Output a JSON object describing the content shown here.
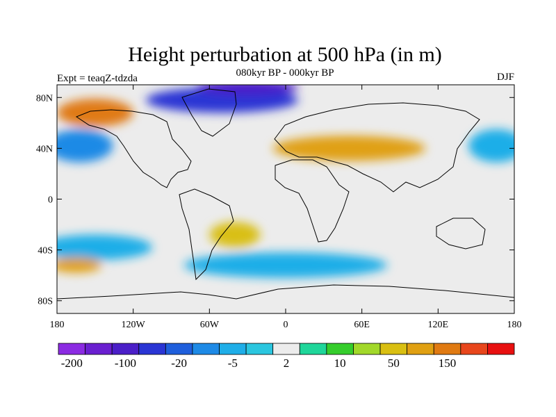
{
  "title": "Height perturbation at 500 hPa (in m)",
  "left_label": "Expt = teaqZ-tdzda",
  "center_label": "080kyr BP - 000kyr BP",
  "right_label": "DJF",
  "map": {
    "projection": "cylindrical equidistant",
    "lon_range": [
      -180,
      180
    ],
    "lat_range": [
      -90,
      90
    ],
    "lat_ticks": [
      {
        "value": 80,
        "label": "80N"
      },
      {
        "value": 40,
        "label": "40N"
      },
      {
        "value": 0,
        "label": "0"
      },
      {
        "value": -40,
        "label": "40S"
      },
      {
        "value": -80,
        "label": "80S"
      }
    ],
    "lon_ticks": [
      {
        "value": -180,
        "label": "180"
      },
      {
        "value": -120,
        "label": "120W"
      },
      {
        "value": -60,
        "label": "60W"
      },
      {
        "value": 0,
        "label": "0"
      },
      {
        "value": 60,
        "label": "60E"
      },
      {
        "value": 120,
        "label": "120E"
      },
      {
        "value": 180,
        "label": "180"
      }
    ]
  },
  "colorbar": {
    "colors": [
      "#8b2be2",
      "#6a1fd0",
      "#4b1fc8",
      "#2a35d4",
      "#1f5fdc",
      "#1e8ae6",
      "#1faee8",
      "#2bc6df",
      "#ececec",
      "#1fd69a",
      "#35cd2c",
      "#a2d82a",
      "#d9bf12",
      "#e0a012",
      "#e07a12",
      "#e8461c",
      "#e81010"
    ],
    "label_indices": [
      1,
      3,
      5,
      7,
      9,
      11,
      13,
      15
    ],
    "labels": [
      "-200",
      "-100",
      "-20",
      "-5",
      "2",
      "10",
      "50",
      "150"
    ]
  },
  "fields": [
    {
      "lon": -162,
      "lat": 42,
      "sx": 26,
      "sy": 13,
      "level": 5
    },
    {
      "lon": 166,
      "lat": 42,
      "sx": 22,
      "sy": 13,
      "level": 6
    },
    {
      "lon": -50,
      "lat": 78,
      "sx": 60,
      "sy": 10,
      "level": 3
    },
    {
      "lon": -30,
      "lat": 88,
      "sx": 40,
      "sy": 6,
      "level": 2
    },
    {
      "lon": 50,
      "lat": 40,
      "sx": 60,
      "sy": 10,
      "level": 13
    },
    {
      "lon": -150,
      "lat": 68,
      "sx": 30,
      "sy": 11,
      "level": 14
    },
    {
      "lon": -150,
      "lat": -38,
      "sx": 45,
      "sy": 10,
      "level": 6
    },
    {
      "lon": 0,
      "lat": -52,
      "sx": 80,
      "sy": 10,
      "level": 6
    },
    {
      "lon": -40,
      "lat": -28,
      "sx": 20,
      "sy": 10,
      "level": 12
    },
    {
      "lon": -165,
      "lat": -52,
      "sx": 20,
      "sy": 6,
      "level": 13
    }
  ]
}
